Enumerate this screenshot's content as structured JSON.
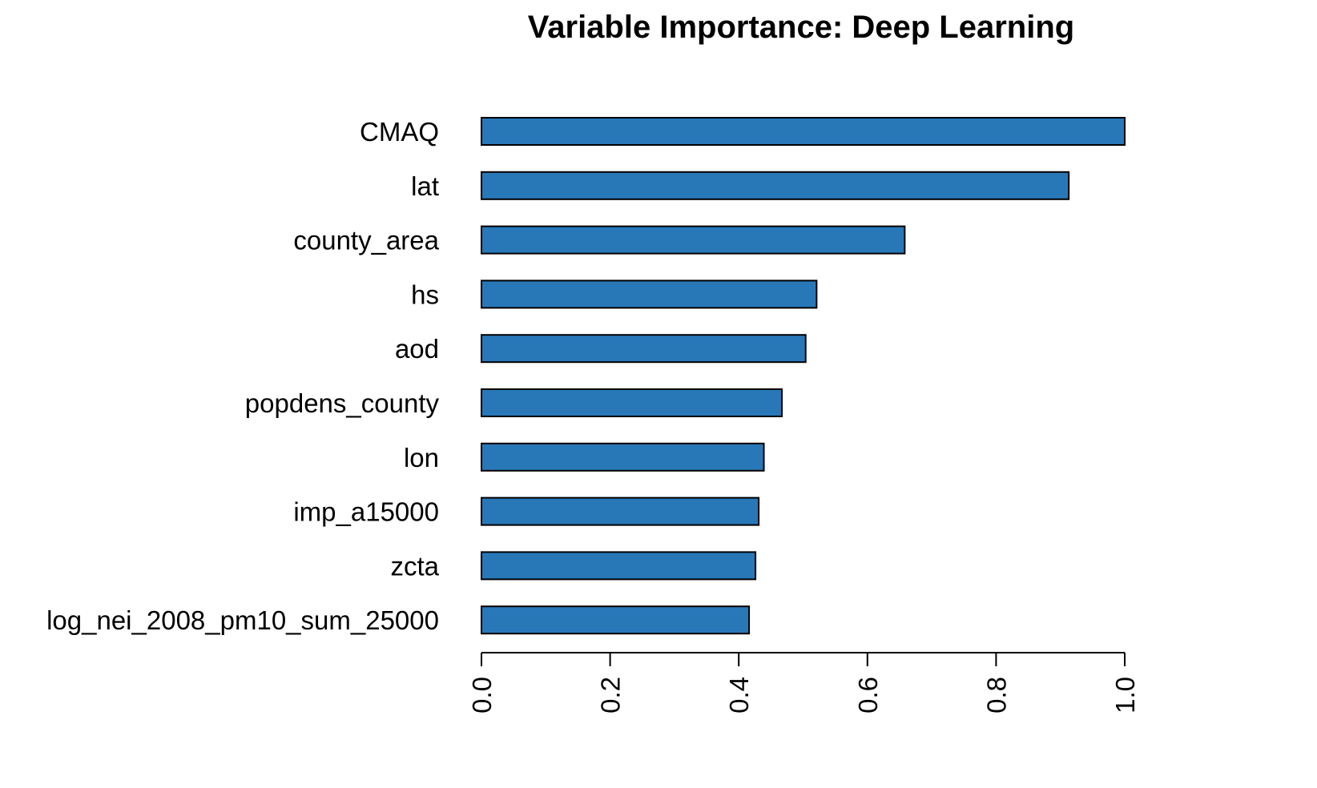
{
  "chart_data": {
    "type": "bar",
    "orientation": "horizontal",
    "title": "Variable Importance: Deep Learning",
    "xlabel": "",
    "ylabel": "",
    "categories": [
      "CMAQ",
      "lat",
      "county_area",
      "hs",
      "aod",
      "popdens_county",
      "lon",
      "imp_a15000",
      "zcta",
      "log_nei_2008_pm10_sum_25000"
    ],
    "values": [
      1.0,
      0.913,
      0.658,
      0.521,
      0.504,
      0.467,
      0.439,
      0.431,
      0.426,
      0.416
    ],
    "xlim": [
      0,
      1.0
    ],
    "x_ticks": [
      0.0,
      0.2,
      0.4,
      0.6,
      0.8,
      1.0
    ],
    "x_tick_labels": [
      "0.0",
      "0.2",
      "0.4",
      "0.6",
      "0.8",
      "1.0"
    ],
    "bar_color": "#2878B8",
    "grid": false,
    "legend": "none"
  }
}
